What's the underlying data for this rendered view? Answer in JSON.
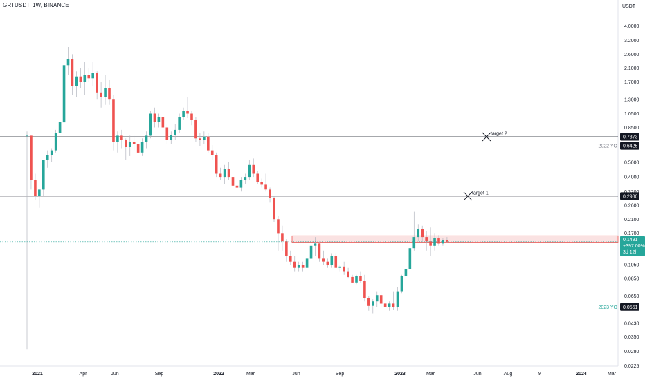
{
  "header": {
    "title": "GRTUSDT, 1W, BINANCE"
  },
  "colors": {
    "up": "#26a69a",
    "down": "#ef5350",
    "wick": "#b2b5be",
    "line": "#131722",
    "zone_fill": "#f7cfcf",
    "zone_border": "#ef5350"
  },
  "chart_data": {
    "type": "candlestick",
    "y_scale": "log",
    "y_unit": "USDT",
    "ylim": [
      0.02,
      5.0
    ],
    "y_ticks": [
      "4.0000",
      "3.2000",
      "2.6000",
      "2.1000",
      "1.7000",
      "1.3000",
      "1.0500",
      "0.8500",
      "0.6425",
      "0.5000",
      "0.4000",
      "0.3200",
      "0.2600",
      "0.2100",
      "0.1700",
      "0.1050",
      "0.0850",
      "0.0650",
      "0.0430",
      "0.0350",
      "0.0280",
      "0.0225"
    ],
    "x_ticks": [
      {
        "label": "2021",
        "year": true
      },
      {
        "label": "Apr",
        "year": false
      },
      {
        "label": "Jun",
        "year": false
      },
      {
        "label": "Sep",
        "year": false
      },
      {
        "label": "2022",
        "year": true
      },
      {
        "label": "Mar",
        "year": false
      },
      {
        "label": "Jun",
        "year": false
      },
      {
        "label": "Sep",
        "year": false
      },
      {
        "label": "2023",
        "year": true
      },
      {
        "label": "Mar",
        "year": false
      },
      {
        "label": "Jun",
        "year": false
      },
      {
        "label": "Aug",
        "year": false
      },
      {
        "label": "9",
        "year": false
      },
      {
        "label": "2024",
        "year": true
      },
      {
        "label": "Mar",
        "year": false
      }
    ],
    "candles": [
      [
        0.75,
        0.8,
        0.029,
        0.75
      ],
      [
        0.75,
        0.75,
        0.33,
        0.38
      ],
      [
        0.38,
        0.42,
        0.28,
        0.3
      ],
      [
        0.3,
        0.33,
        0.25,
        0.33
      ],
      [
        0.33,
        0.52,
        0.3,
        0.52
      ],
      [
        0.52,
        0.6,
        0.46,
        0.56
      ],
      [
        0.56,
        0.62,
        0.5,
        0.6
      ],
      [
        0.6,
        0.82,
        0.58,
        0.78
      ],
      [
        0.78,
        0.95,
        0.72,
        0.92
      ],
      [
        0.92,
        2.3,
        0.88,
        2.2
      ],
      [
        2.2,
        2.9,
        1.9,
        2.4
      ],
      [
        2.4,
        2.6,
        1.4,
        1.6
      ],
      [
        1.6,
        2.0,
        1.35,
        1.85
      ],
      [
        1.85,
        2.1,
        1.55,
        1.7
      ],
      [
        1.7,
        2.3,
        1.4,
        1.9
      ],
      [
        1.9,
        2.1,
        1.7,
        1.8
      ],
      [
        1.8,
        2.3,
        1.6,
        1.95
      ],
      [
        1.95,
        2.0,
        1.3,
        1.45
      ],
      [
        1.45,
        1.7,
        1.15,
        1.35
      ],
      [
        1.35,
        1.9,
        1.2,
        1.55
      ],
      [
        1.55,
        1.75,
        1.2,
        1.3
      ],
      [
        1.3,
        1.4,
        0.6,
        0.68
      ],
      [
        0.68,
        0.8,
        0.58,
        0.75
      ],
      [
        0.75,
        0.82,
        0.62,
        0.7
      ],
      [
        0.7,
        0.72,
        0.52,
        0.63
      ],
      [
        0.63,
        0.75,
        0.55,
        0.68
      ],
      [
        0.68,
        0.75,
        0.6,
        0.66
      ],
      [
        0.66,
        0.7,
        0.54,
        0.58
      ],
      [
        0.58,
        0.72,
        0.55,
        0.68
      ],
      [
        0.68,
        0.8,
        0.62,
        0.75
      ],
      [
        0.75,
        1.1,
        0.72,
        1.05
      ],
      [
        1.05,
        1.15,
        0.85,
        0.92
      ],
      [
        0.92,
        1.05,
        0.85,
        1.0
      ],
      [
        1.0,
        1.05,
        0.8,
        0.85
      ],
      [
        0.85,
        0.9,
        0.66,
        0.7
      ],
      [
        0.7,
        0.8,
        0.66,
        0.76
      ],
      [
        0.76,
        0.9,
        0.7,
        0.82
      ],
      [
        0.82,
        1.05,
        0.78,
        1.0
      ],
      [
        1.0,
        1.15,
        0.95,
        1.1
      ],
      [
        1.1,
        1.35,
        0.98,
        1.05
      ],
      [
        1.05,
        1.1,
        0.88,
        0.95
      ],
      [
        0.95,
        1.0,
        0.68,
        0.72
      ],
      [
        0.72,
        0.78,
        0.64,
        0.7
      ],
      [
        0.7,
        0.8,
        0.66,
        0.74
      ],
      [
        0.74,
        0.78,
        0.58,
        0.6
      ],
      [
        0.6,
        0.65,
        0.52,
        0.56
      ],
      [
        0.56,
        0.58,
        0.4,
        0.42
      ],
      [
        0.42,
        0.46,
        0.38,
        0.4
      ],
      [
        0.4,
        0.48,
        0.36,
        0.45
      ],
      [
        0.45,
        0.5,
        0.38,
        0.4
      ],
      [
        0.4,
        0.42,
        0.33,
        0.35
      ],
      [
        0.35,
        0.37,
        0.32,
        0.34
      ],
      [
        0.34,
        0.4,
        0.32,
        0.38
      ],
      [
        0.38,
        0.42,
        0.36,
        0.4
      ],
      [
        0.4,
        0.52,
        0.38,
        0.48
      ],
      [
        0.48,
        0.53,
        0.4,
        0.42
      ],
      [
        0.42,
        0.44,
        0.36,
        0.37
      ],
      [
        0.37,
        0.39,
        0.34,
        0.355
      ],
      [
        0.355,
        0.42,
        0.32,
        0.33
      ],
      [
        0.33,
        0.34,
        0.27,
        0.29
      ],
      [
        0.29,
        0.3,
        0.2,
        0.21
      ],
      [
        0.21,
        0.22,
        0.13,
        0.17
      ],
      [
        0.17,
        0.19,
        0.13,
        0.15
      ],
      [
        0.15,
        0.155,
        0.11,
        0.12
      ],
      [
        0.12,
        0.13,
        0.105,
        0.11
      ],
      [
        0.11,
        0.12,
        0.095,
        0.1
      ],
      [
        0.1,
        0.11,
        0.095,
        0.105
      ],
      [
        0.105,
        0.11,
        0.095,
        0.1
      ],
      [
        0.1,
        0.12,
        0.095,
        0.115
      ],
      [
        0.115,
        0.145,
        0.11,
        0.14
      ],
      [
        0.14,
        0.16,
        0.12,
        0.145
      ],
      [
        0.145,
        0.15,
        0.11,
        0.115
      ],
      [
        0.115,
        0.13,
        0.105,
        0.11
      ],
      [
        0.11,
        0.115,
        0.1,
        0.105
      ],
      [
        0.105,
        0.125,
        0.1,
        0.12
      ],
      [
        0.12,
        0.125,
        0.1,
        0.1
      ],
      [
        0.1,
        0.105,
        0.095,
        0.102
      ],
      [
        0.102,
        0.11,
        0.09,
        0.095
      ],
      [
        0.095,
        0.1,
        0.085,
        0.087
      ],
      [
        0.087,
        0.09,
        0.08,
        0.08
      ],
      [
        0.08,
        0.09,
        0.078,
        0.088
      ],
      [
        0.088,
        0.095,
        0.08,
        0.082
      ],
      [
        0.082,
        0.09,
        0.06,
        0.063
      ],
      [
        0.063,
        0.065,
        0.052,
        0.056
      ],
      [
        0.056,
        0.062,
        0.05,
        0.06
      ],
      [
        0.06,
        0.07,
        0.055,
        0.066
      ],
      [
        0.066,
        0.07,
        0.055,
        0.058
      ],
      [
        0.058,
        0.06,
        0.053,
        0.055
      ],
      [
        0.055,
        0.06,
        0.052,
        0.058
      ],
      [
        0.058,
        0.07,
        0.053,
        0.055
      ],
      [
        0.055,
        0.075,
        0.052,
        0.07
      ],
      [
        0.07,
        0.09,
        0.068,
        0.088
      ],
      [
        0.088,
        0.1,
        0.085,
        0.098
      ],
      [
        0.098,
        0.14,
        0.09,
        0.135
      ],
      [
        0.135,
        0.235,
        0.13,
        0.16
      ],
      [
        0.16,
        0.195,
        0.15,
        0.18
      ],
      [
        0.18,
        0.19,
        0.15,
        0.16
      ],
      [
        0.16,
        0.175,
        0.13,
        0.15
      ],
      [
        0.15,
        0.185,
        0.12,
        0.14
      ],
      [
        0.14,
        0.17,
        0.13,
        0.158
      ],
      [
        0.158,
        0.165,
        0.14,
        0.145
      ],
      [
        0.145,
        0.158,
        0.14,
        0.153
      ],
      [
        0.153,
        0.16,
        0.148,
        0.1491
      ]
    ],
    "levels": [
      {
        "name": "target 2",
        "value": 0.7373,
        "label": "0.7373"
      },
      {
        "name": "target 1",
        "value": 0.2986,
        "label": "0.2986"
      }
    ],
    "year_open_markers": [
      {
        "text": "2022 YO",
        "value": 0.6425,
        "label": "0.6425",
        "text_color": "#787b86",
        "tag_color": "#131722"
      },
      {
        "text": "2023 YO",
        "value": 0.0551,
        "label": "0.0551",
        "text_color": "#26a69a",
        "tag_color": "#131722"
      }
    ],
    "zone": {
      "from": 0.148,
      "to": 0.163
    },
    "current_price": {
      "label": "0.1491",
      "change": "+397.00%",
      "countdown": "3d 12h",
      "value": 0.1491
    }
  }
}
